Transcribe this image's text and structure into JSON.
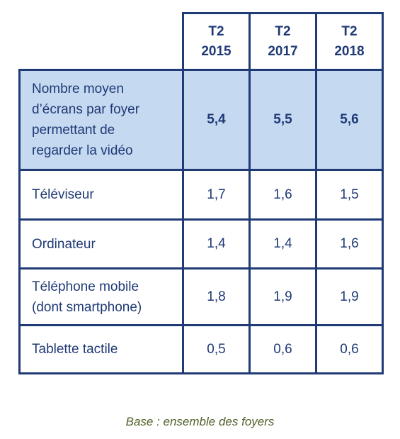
{
  "table": {
    "header": {
      "columns": [
        {
          "line1": "T2",
          "line2": "2015"
        },
        {
          "line1": "T2",
          "line2": "2017"
        },
        {
          "line1": "T2",
          "line2": "2018"
        }
      ]
    },
    "rows": [
      {
        "label_lines": [
          "Nombre moyen",
          "d’écrans par foyer",
          "permettant de",
          "regarder la vidéo"
        ],
        "values": [
          "5,4",
          "5,5",
          "5,6"
        ]
      },
      {
        "label_lines": [
          "Téléviseur"
        ],
        "values": [
          "1,7",
          "1,6",
          "1,5"
        ]
      },
      {
        "label_lines": [
          "Ordinateur"
        ],
        "values": [
          "1,4",
          "1,4",
          "1,6"
        ]
      },
      {
        "label_lines": [
          "Téléphone mobile",
          "(dont smartphone)"
        ],
        "values": [
          "1,8",
          "1,9",
          "1,9"
        ]
      },
      {
        "label_lines": [
          "Tablette tactile"
        ],
        "values": [
          "0,5",
          "0,6",
          "0,6"
        ]
      }
    ]
  },
  "caption": "Base : ensemble des foyers",
  "colors": {
    "border": "#1f3a75",
    "text": "#1f3a75",
    "highlight_fill": "#c5d9f1",
    "caption": "#4f6228"
  }
}
